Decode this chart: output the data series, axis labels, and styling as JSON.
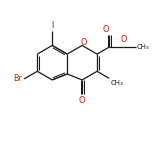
{
  "bg_color": "#ffffff",
  "bond_color": "#1a1a1a",
  "atom_colors": {
    "O": "#e00000",
    "Br": "#8b3a00",
    "I": "#6600aa",
    "C": "#1a1a1a"
  },
  "bond_lw": 0.9,
  "dbl_lw": 0.75,
  "figsize": [
    1.52,
    1.52
  ],
  "dpi": 100,
  "xlim": [
    0,
    10
  ],
  "ylim": [
    0,
    10
  ],
  "font_size": 5.8
}
